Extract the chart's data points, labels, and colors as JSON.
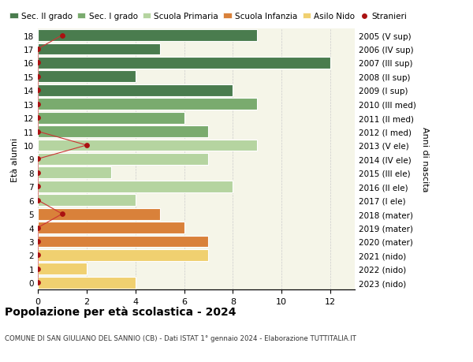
{
  "ages": [
    18,
    17,
    16,
    15,
    14,
    13,
    12,
    11,
    10,
    9,
    8,
    7,
    6,
    5,
    4,
    3,
    2,
    1,
    0
  ],
  "right_labels": [
    "2005 (V sup)",
    "2006 (IV sup)",
    "2007 (III sup)",
    "2008 (II sup)",
    "2009 (I sup)",
    "2010 (III med)",
    "2011 (II med)",
    "2012 (I med)",
    "2013 (V ele)",
    "2014 (IV ele)",
    "2015 (III ele)",
    "2016 (II ele)",
    "2017 (I ele)",
    "2018 (mater)",
    "2019 (mater)",
    "2020 (mater)",
    "2021 (nido)",
    "2022 (nido)",
    "2023 (nido)"
  ],
  "bar_values": [
    9,
    5,
    12,
    4,
    8,
    9,
    6,
    7,
    9,
    7,
    3,
    8,
    4,
    5,
    6,
    7,
    7,
    2,
    4
  ],
  "bar_colors": [
    "#4a7c4e",
    "#4a7c4e",
    "#4a7c4e",
    "#4a7c4e",
    "#4a7c4e",
    "#7aab6e",
    "#7aab6e",
    "#7aab6e",
    "#b5d4a0",
    "#b5d4a0",
    "#b5d4a0",
    "#b5d4a0",
    "#b5d4a0",
    "#d9813a",
    "#d9813a",
    "#d9813a",
    "#f0d070",
    "#f0d070",
    "#f0d070"
  ],
  "stranieri_by_age": {
    "18": 1,
    "17": 0,
    "16": 0,
    "15": 0,
    "14": 0,
    "13": 0,
    "12": 0,
    "11": 0,
    "10": 2,
    "9": 0,
    "8": 0,
    "7": 0,
    "6": 0,
    "5": 1,
    "4": 0,
    "3": 0,
    "2": 0,
    "1": 0,
    "0": 0
  },
  "legend_labels": [
    "Sec. II grado",
    "Sec. I grado",
    "Scuola Primaria",
    "Scuola Infanzia",
    "Asilo Nido",
    "Stranieri"
  ],
  "legend_colors": [
    "#4a7c4e",
    "#7aab6e",
    "#b5d4a0",
    "#d9813a",
    "#f0d070",
    "#aa1111"
  ],
  "ylabel_left": "Età alunni",
  "ylabel_right": "Anni di nascita",
  "title": "Popolazione per età scolastica - 2024",
  "subtitle": "COMUNE DI SAN GIULIANO DEL SANNIO (CB) - Dati ISTAT 1° gennaio 2024 - Elaborazione TUTTITALIA.IT",
  "xlim": [
    0,
    13
  ],
  "xticks": [
    0,
    2,
    4,
    6,
    8,
    10,
    12
  ],
  "background_color": "#ffffff",
  "plot_bg_color": "#f5f5e8",
  "grid_color": "#cccccc",
  "bar_height": 0.85,
  "stranieri_line_color": "#cc3333",
  "stranieri_dot_color": "#aa1111"
}
